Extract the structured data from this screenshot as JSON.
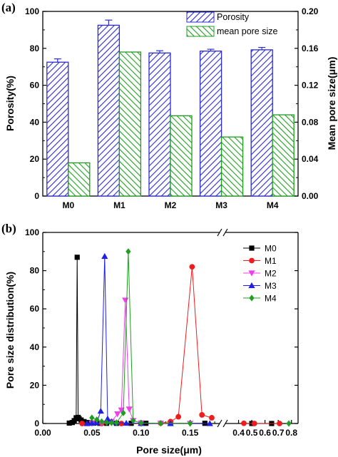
{
  "chart_data": [
    {
      "panel_label": "(a)",
      "type": "bar",
      "categories": [
        "M0",
        "M1",
        "M2",
        "M3",
        "M4"
      ],
      "series": [
        {
          "name": "Porosity",
          "axis": "left",
          "values": [
            72.5,
            92.5,
            77.5,
            78.5,
            79.2
          ],
          "errors": [
            1.8,
            2.8,
            1.2,
            1.0,
            1.3
          ],
          "color": "#2b2bd4",
          "hatch": "diagonal"
        },
        {
          "name": "mean pore size",
          "axis": "right",
          "values": [
            0.036,
            0.156,
            0.087,
            0.064,
            0.088
          ],
          "color": "#1f9e1f",
          "hatch": "diagonal"
        }
      ],
      "ylabel": "Porosity(%)",
      "y2label": "Mean pore size(μm)",
      "ylim": [
        0,
        100
      ],
      "y2lim": [
        0,
        0.2
      ],
      "yticks": [
        "0",
        "20",
        "40",
        "60",
        "80",
        "100"
      ],
      "y2ticks": [
        "0.00",
        "0.04",
        "0.08",
        "0.12",
        "0.16",
        "0.20"
      ],
      "legend_position": "top-right"
    },
    {
      "panel_label": "(b)",
      "type": "line",
      "xlabel": "Pore size(μm)",
      "ylabel": "Pore size distribution(%)",
      "ylim": [
        0,
        100
      ],
      "xlim_low": [
        0,
        0.18
      ],
      "xlim_high": [
        0.3,
        0.85
      ],
      "axis_break": true,
      "yticks": [
        "0",
        "20",
        "40",
        "60",
        "80",
        "100"
      ],
      "xticks_low": [
        "0.00",
        "0.05",
        "0.10",
        "0.15"
      ],
      "xticks_high": [
        "0.4",
        "0.5",
        "0.6",
        "0.7",
        "0.8"
      ],
      "legend_position": "top-right",
      "series": [
        {
          "name": "M0",
          "color": "#000000",
          "marker": "square",
          "x": [
            0.027,
            0.03,
            0.032,
            0.034,
            0.035,
            0.036,
            0.037,
            0.039,
            0.042,
            0.045,
            0.048,
            0.052,
            0.058,
            0.065,
            0.075,
            0.09,
            0.105,
            0.13,
            0.165,
            0.5,
            0.65
          ],
          "y": [
            0.2,
            0.5,
            1.5,
            3.0,
            87.0,
            3.2,
            2.5,
            1.8,
            1.0,
            0.5,
            0.3,
            0.2,
            0.1,
            0.1,
            0.1,
            0.1,
            0.1,
            0.1,
            0.1,
            0.0,
            0.0
          ]
        },
        {
          "name": "M1",
          "color": "#ee1c1c",
          "marker": "circle",
          "x": [
            0.04,
            0.06,
            0.08,
            0.1,
            0.12,
            0.13,
            0.138,
            0.152,
            0.162,
            0.172,
            0.44,
            0.52,
            0.71
          ],
          "y": [
            0.0,
            0.0,
            0.0,
            0.0,
            0.2,
            1.0,
            3.5,
            82.0,
            4.5,
            3.0,
            0.1,
            0.0,
            0.0
          ]
        },
        {
          "name": "M2",
          "color": "#ee3ef0",
          "marker": "triangle-down",
          "x": [
            0.05,
            0.06,
            0.07,
            0.076,
            0.08,
            0.084,
            0.088,
            0.092,
            0.1,
            0.12,
            0.15
          ],
          "y": [
            0.0,
            0.2,
            1.0,
            5.0,
            7.0,
            64.5,
            7.5,
            1.5,
            0.3,
            0.1,
            0.0
          ]
        },
        {
          "name": "M3",
          "color": "#2020e0",
          "marker": "triangle-up",
          "x": [
            0.045,
            0.05,
            0.055,
            0.059,
            0.063,
            0.066,
            0.07,
            0.075,
            0.085,
            0.1,
            0.13,
            0.17
          ],
          "y": [
            0.0,
            0.2,
            0.5,
            6.5,
            87.5,
            2.5,
            1.0,
            0.5,
            0.2,
            0.1,
            0.0,
            0.0
          ]
        },
        {
          "name": "M4",
          "color": "#1f9e1f",
          "marker": "diamond",
          "x": [
            0.05,
            0.055,
            0.06,
            0.065,
            0.07,
            0.075,
            0.082,
            0.087,
            0.092,
            0.1,
            0.12,
            0.15,
            0.78
          ],
          "y": [
            3.0,
            2.0,
            1.0,
            0.5,
            0.3,
            0.4,
            5.5,
            90.0,
            1.5,
            0.3,
            0.1,
            0.0,
            0.0
          ]
        }
      ]
    }
  ]
}
